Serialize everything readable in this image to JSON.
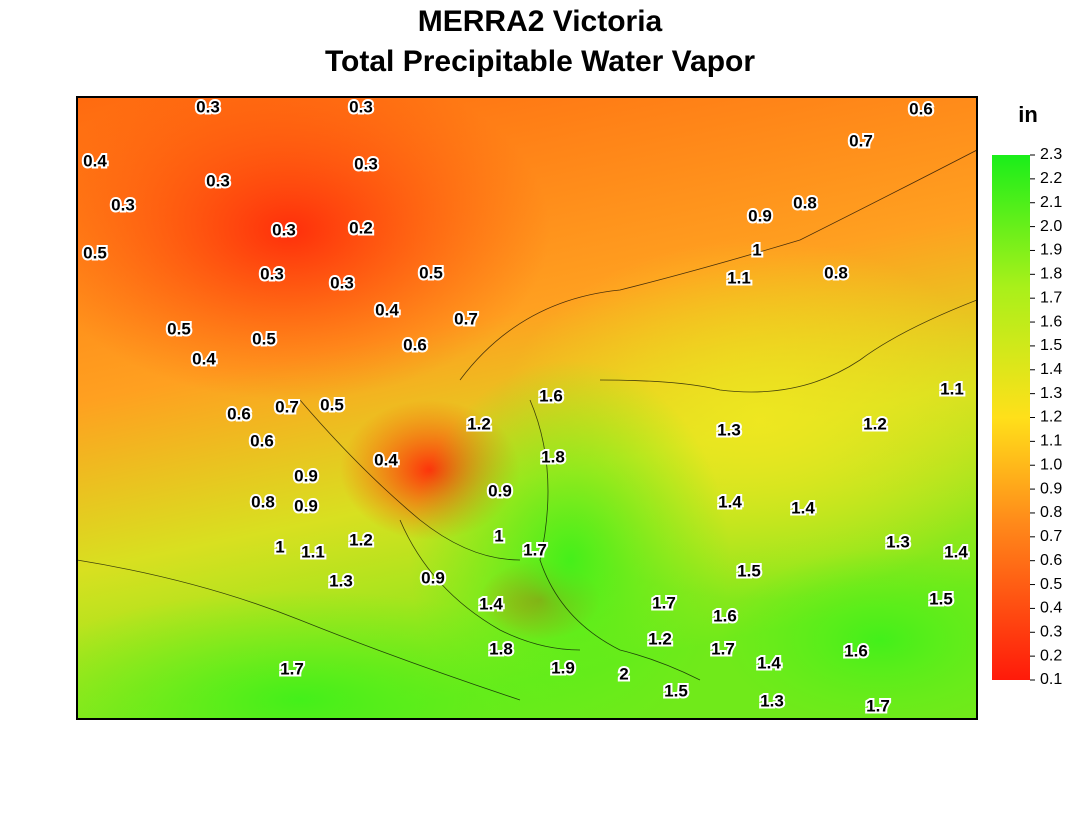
{
  "title": [
    "MERRA2 Victoria",
    "Total Precipitable Water Vapor"
  ],
  "colorbar": {
    "unit": "in",
    "lim": [
      0.1,
      2.3
    ],
    "ticks": [
      0.1,
      0.2,
      0.3,
      0.4,
      0.5,
      0.6,
      0.7,
      0.8,
      0.9,
      {
        "value": 1,
        "label": "1.0"
      },
      1.1,
      1.2,
      1.3,
      1.4,
      1.5,
      1.6,
      1.7,
      1.8,
      1.9,
      {
        "value": 2,
        "label": "2.0"
      },
      2.1,
      2.2,
      2.3
    ]
  },
  "contour_labels": [
    "0.3",
    "0.3",
    "0.6",
    "0.7",
    "0.4",
    "0.3",
    "0.3",
    "0.3",
    "0.9",
    "0.8",
    "0.3",
    "0.2",
    "0.5",
    "1",
    "0.3",
    "0.3",
    "0.5",
    "1.1",
    "0.8",
    "0.4",
    "0.7",
    "0.5",
    "0.5",
    "0.6",
    "0.4",
    "1.6",
    "1.1",
    "0.6",
    "0.7",
    "0.5",
    "1.2",
    "1.3",
    "1.2",
    "0.6",
    "1.8",
    "0.4",
    "0.9",
    "0.9",
    "0.8",
    "0.9",
    "1.4",
    "1.4",
    "1",
    "1.2",
    "1.7",
    "1",
    "1.1",
    "1.3",
    "1.4",
    "1.5",
    "1.3",
    "0.9",
    "1.4",
    "1.7",
    "1.6",
    "1.5",
    "1.2",
    "1.8",
    "1.7",
    "1.6",
    "1.9",
    "2",
    "1.4",
    "1.7",
    "1.5",
    "1.3",
    "1.7"
  ]
}
